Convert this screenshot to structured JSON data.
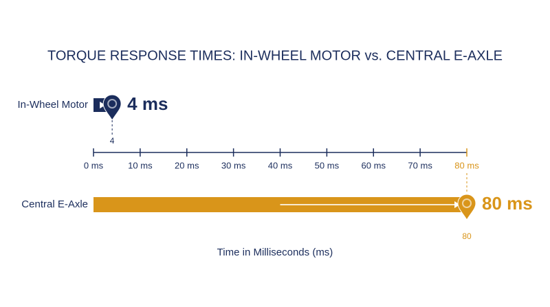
{
  "chart_data": {
    "type": "bar",
    "orientation": "horizontal",
    "title": "TORQUE RESPONSE TIMES: IN-WHEEL MOTOR vs. CENTRAL E-AXLE",
    "categories": [
      "In-Wheel Motor",
      "Central E-Axle"
    ],
    "values": [
      4,
      80
    ],
    "value_labels": [
      "4 ms",
      "80 ms"
    ],
    "colors": [
      "#1b2d5c",
      "#d9951a"
    ],
    "xlim": [
      0,
      80
    ],
    "xticks": [
      {
        "value": 0,
        "label": "0 ms"
      },
      {
        "value": 10,
        "label": "10 ms"
      },
      {
        "value": 20,
        "label": "20 ms"
      },
      {
        "value": 30,
        "label": "30 ms"
      },
      {
        "value": 40,
        "label": "40 ms"
      },
      {
        "value": 50,
        "label": "50 ms"
      },
      {
        "value": 60,
        "label": "60 ms"
      },
      {
        "value": 70,
        "label": "70 ms"
      },
      {
        "value": 80,
        "label": "80 ms"
      }
    ],
    "xlabel": "Time in Milliseconds (ms)"
  }
}
